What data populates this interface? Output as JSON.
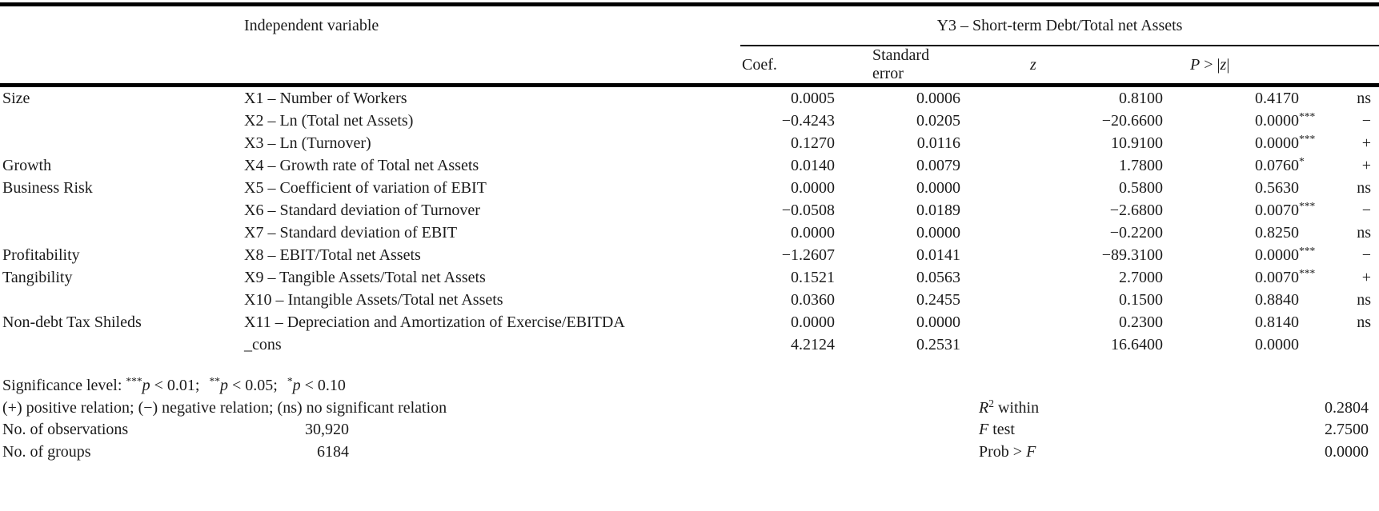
{
  "table": {
    "header": {
      "independent_variable": "Independent variable",
      "dependent_variable": "Y3 – Short-term Debt/Total net Assets",
      "cols": {
        "coef": "Coef.",
        "se": "Standard error",
        "z": "z",
        "p_italic": "P",
        "p_mid": " > |",
        "p_z": "z",
        "p_end": "|"
      }
    },
    "rows": [
      {
        "category": "Size",
        "variable": "X1 – Number of Workers",
        "coef": "0.0005",
        "se": "0.0006",
        "z": "0.8100",
        "p": "0.4170",
        "stars": "",
        "sign": "ns"
      },
      {
        "category": "",
        "variable": "X2 – Ln (Total net Assets)",
        "coef": "−0.4243",
        "se": "0.0205",
        "z": "−20.6600",
        "p": "0.0000",
        "stars": "***",
        "sign": "−"
      },
      {
        "category": "",
        "variable": "X3 – Ln (Turnover)",
        "coef": "0.1270",
        "se": "0.0116",
        "z": "10.9100",
        "p": "0.0000",
        "stars": "***",
        "sign": "+"
      },
      {
        "category": "Growth",
        "variable": "X4 – Growth rate of Total net Assets",
        "coef": "0.0140",
        "se": "0.0079",
        "z": "1.7800",
        "p": "0.0760",
        "stars": "*",
        "sign": "+"
      },
      {
        "category": "Business Risk",
        "variable": "X5 – Coefficient of variation of EBIT",
        "coef": "0.0000",
        "se": "0.0000",
        "z": "0.5800",
        "p": "0.5630",
        "stars": "",
        "sign": "ns"
      },
      {
        "category": "",
        "variable": "X6 – Standard deviation of Turnover",
        "coef": "−0.0508",
        "se": "0.0189",
        "z": "−2.6800",
        "p": "0.0070",
        "stars": "***",
        "sign": "−"
      },
      {
        "category": "",
        "variable": "X7 – Standard deviation of EBIT",
        "coef": "0.0000",
        "se": "0.0000",
        "z": "−0.2200",
        "p": "0.8250",
        "stars": "",
        "sign": "ns"
      },
      {
        "category": "Profitability",
        "variable": "X8 – EBIT/Total net Assets",
        "coef": "−1.2607",
        "se": "0.0141",
        "z": "−89.3100",
        "p": "0.0000",
        "stars": "***",
        "sign": "−"
      },
      {
        "category": "Tangibility",
        "variable": "X9 – Tangible Assets/Total net Assets",
        "coef": "0.1521",
        "se": "0.0563",
        "z": "2.7000",
        "p": "0.0070",
        "stars": "***",
        "sign": "+"
      },
      {
        "category": "",
        "variable": "X10 – Intangible Assets/Total net Assets",
        "coef": "0.0360",
        "se": "0.2455",
        "z": "0.1500",
        "p": "0.8840",
        "stars": "",
        "sign": "ns"
      },
      {
        "category": "Non-debt Tax Shileds",
        "variable": "X11 – Depreciation and Amortization of Exercise/EBITDA",
        "coef": "0.0000",
        "se": "0.0000",
        "z": "0.2300",
        "p": "0.8140",
        "stars": "",
        "sign": "ns"
      },
      {
        "category": "",
        "variable": "_cons",
        "coef": "4.2124",
        "se": "0.2531",
        "z": "16.6400",
        "p": "0.0000",
        "stars": "",
        "sign": ""
      }
    ]
  },
  "footer": {
    "significance": {
      "label": "Significance level:",
      "levels": [
        {
          "stars": "***",
          "p": "p",
          "cond": " < 0.01;"
        },
        {
          "stars": "**",
          "p": "p",
          "cond": " < 0.05;"
        },
        {
          "stars": "*",
          "p": "p",
          "cond": " < 0.10"
        }
      ]
    },
    "relations": "(+) positive relation; (−) negative relation; (ns) no significant relation",
    "left_stats": [
      {
        "label": "No. of observations",
        "value": "30,920"
      },
      {
        "label": "No. of groups",
        "value": "6184"
      }
    ],
    "right_stats": [
      {
        "pre": "",
        "italic": "R",
        "sup": "2",
        "post": " within",
        "value": "0.2804"
      },
      {
        "pre": "",
        "italic": "F",
        "sup": "",
        "post": " test",
        "value": "2.7500"
      },
      {
        "pre": "Prob > ",
        "italic": "F",
        "sup": "",
        "post": "",
        "value": "0.0000"
      }
    ]
  }
}
